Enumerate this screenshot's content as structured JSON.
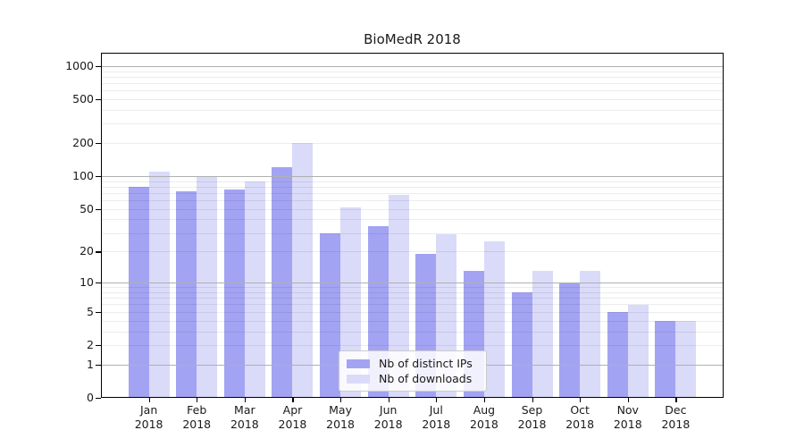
{
  "figure": {
    "background": "#ffffff"
  },
  "chart_data": {
    "type": "bar",
    "title": "BioMedR 2018",
    "categories": [
      "Jan 2018",
      "Feb 2018",
      "Mar 2018",
      "Apr 2018",
      "May 2018",
      "Jun 2018",
      "Jul 2018",
      "Aug 2018",
      "Sep 2018",
      "Oct 2018",
      "Nov 2018",
      "Dec 2018"
    ],
    "x_tick_line1": [
      "Jan",
      "Feb",
      "Mar",
      "Apr",
      "May",
      "Jun",
      "Jul",
      "Aug",
      "Sep",
      "Oct",
      "Nov",
      "Dec"
    ],
    "x_tick_line2": "2018",
    "series": [
      {
        "name": "Nb of distinct IPs",
        "color": "#a3a3f3",
        "values": [
          80,
          73,
          75,
          120,
          30,
          35,
          19,
          13,
          8,
          10,
          5,
          4
        ]
      },
      {
        "name": "Nb of downloads",
        "color": "#dadaf9",
        "values": [
          110,
          98,
          90,
          200,
          52,
          68,
          29,
          25,
          13,
          13,
          6,
          4
        ]
      }
    ],
    "yscale": "log10(value+1)",
    "y_tick_values": [
      0,
      1,
      2,
      5,
      10,
      20,
      50,
      100,
      200,
      500,
      1000
    ],
    "y_tick_labels": [
      "0",
      "1",
      "2",
      "5",
      "10",
      "20",
      "50",
      "100",
      "200",
      "500",
      "1000"
    ],
    "major_gridline_values": [
      1,
      10,
      100,
      1000
    ],
    "minor_gridline_values": [
      2,
      3,
      4,
      5,
      6,
      7,
      8,
      9,
      20,
      30,
      40,
      50,
      60,
      70,
      80,
      90,
      200,
      300,
      400,
      500,
      600,
      700,
      800,
      900
    ],
    "ylim": [
      0,
      1320
    ],
    "xlabel": "",
    "ylabel": "",
    "grid": "on",
    "legend_position": "lower center"
  },
  "colors": {
    "major_grid": "#b0b0b0",
    "minor_grid": "#e8e8e8",
    "axis_line": "#000000",
    "text": "#1a1a1a",
    "legend_border": "#cccccc",
    "legend_background": "#ffffff"
  }
}
